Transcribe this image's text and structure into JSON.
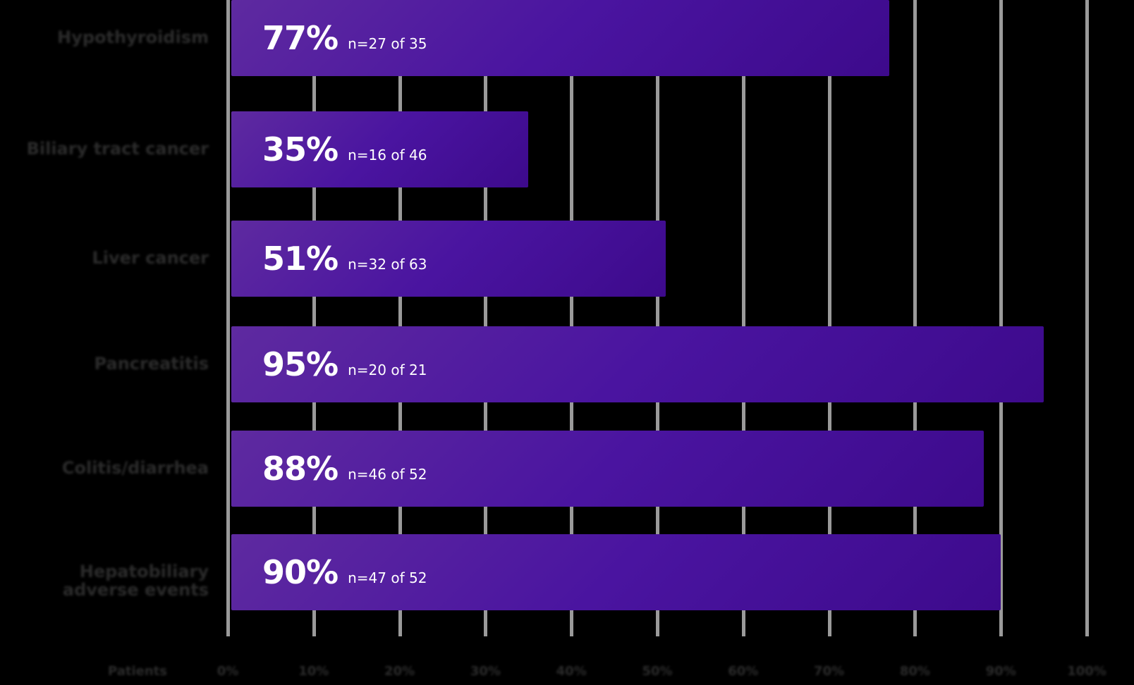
{
  "chart_data": {
    "type": "bar",
    "orientation": "horizontal",
    "title": "",
    "xlabel": "",
    "ylabel": "",
    "xlim": [
      0,
      100
    ],
    "grid": true,
    "categories": [
      "Hypothyroidism",
      "Biliary tract cancer",
      "Liver cancer",
      "Pancreatitis",
      "Colitis/diarrhea",
      "Hepatobiliary adverse events"
    ],
    "values": [
      77,
      35,
      51,
      95,
      88,
      90
    ],
    "value_labels": [
      "77%",
      "35%",
      "51%",
      "95%",
      "88%",
      "90%"
    ],
    "n_labels": [
      "n=27 of 35",
      "n=16 of 46",
      "n=32 of 63",
      "n=20 of 21",
      "n=46 of 52",
      "n=47 of 52"
    ],
    "x_axis_title": "Patients",
    "x_ticks": [
      "0%",
      "10%",
      "20%",
      "30%",
      "40%",
      "50%",
      "60%",
      "70%",
      "80%",
      "90%",
      "100%"
    ],
    "bar_color": "#4a14a0"
  }
}
